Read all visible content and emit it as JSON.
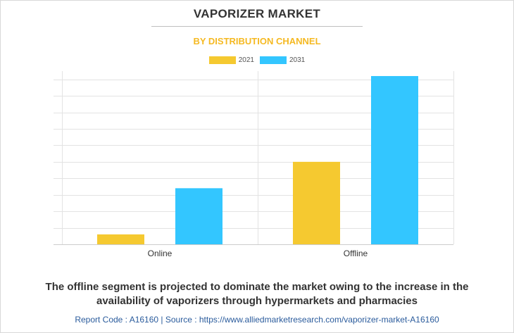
{
  "chart_data": {
    "type": "bar",
    "title": "VAPORIZER MARKET",
    "subtitle": "BY DISTRIBUTION CHANNEL",
    "categories": [
      "Online",
      "Offline"
    ],
    "series": [
      {
        "name": "2021",
        "color": "#f5c930",
        "values": [
          0.6,
          5.0
        ]
      },
      {
        "name": "2031",
        "color": "#33c6ff",
        "values": [
          3.4,
          10.2
        ]
      }
    ],
    "ylim": [
      0,
      10.5
    ],
    "ytick_step": 1,
    "xlabel": "",
    "ylabel": "",
    "grid": true,
    "legend_position": "top-center"
  },
  "colors": {
    "subtitle": "#f5b922",
    "grid": "#e3e3e3",
    "axis": "#cccccc"
  },
  "caption": "The offline segment is projected to dominate the market owing to the increase in the availability of vaporizers through hypermarkets and pharmacies",
  "footer": "Report Code : A16160  |  Source : https://www.alliedmarketresearch.com/vaporizer-market-A16160"
}
